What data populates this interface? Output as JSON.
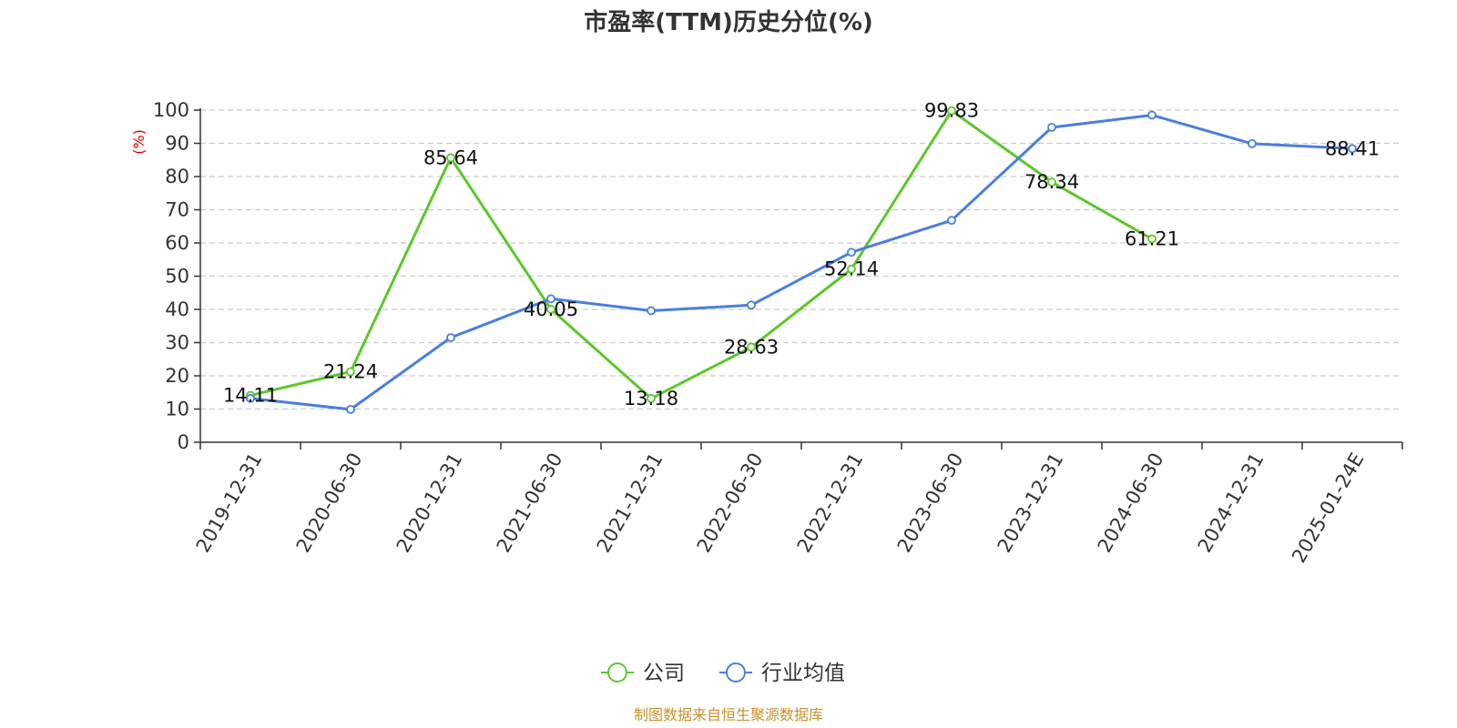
{
  "chart_data": {
    "type": "line",
    "title": "市盈率(TTM)历史分位(%)",
    "ylabel": "(%)",
    "ylim": [
      0,
      100
    ],
    "yticks": [
      "0",
      "10",
      "20",
      "30",
      "40",
      "50",
      "60",
      "70",
      "80",
      "90",
      "100"
    ],
    "grid": true,
    "categories": [
      "2019-12-31",
      "2020-06-30",
      "2020-12-31",
      "2021-06-30",
      "2021-12-31",
      "2022-06-30",
      "2022-12-31",
      "2023-06-30",
      "2023-12-31",
      "2024-06-30",
      "2024-12-31",
      "2025-01-24E"
    ],
    "series": [
      {
        "name": "公司",
        "color": "#5cc72a",
        "values": [
          14.11,
          21.24,
          85.64,
          40.05,
          13.18,
          28.63,
          52.14,
          99.83,
          78.34,
          61.21,
          null,
          null
        ],
        "labels": [
          "14.11",
          "21.24",
          "85.64",
          "40.05",
          "13.18",
          "28.63",
          "52.14",
          "99.83",
          "78.34",
          "61.21",
          "",
          ""
        ]
      },
      {
        "name": "行业均值",
        "color": "#4a7fde",
        "values": [
          13.2,
          9.9,
          31.5,
          43.2,
          39.6,
          41.3,
          57.2,
          66.8,
          94.8,
          98.5,
          89.9,
          88.41
        ],
        "labels": [
          "",
          "",
          "",
          "",
          "",
          "",
          "",
          "",
          "",
          "",
          "",
          "88.41"
        ]
      }
    ],
    "legend_position": "bottom"
  },
  "source": "制图数据来自恒生聚源数据库"
}
